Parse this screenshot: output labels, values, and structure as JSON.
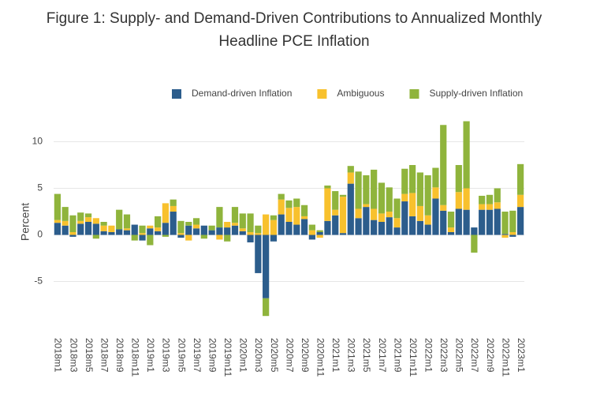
{
  "chart_data": {
    "type": "stacked_bar",
    "title": [
      "Figure 1: Supply- and Demand-Driven Contributions to Annualized Monthly",
      "Headline PCE Inflation"
    ],
    "y_label": "Percent",
    "categories": [
      "2018m1",
      null,
      "2018m3",
      null,
      "2018m5",
      null,
      "2018m7",
      null,
      "2018m9",
      null,
      "2018m11",
      null,
      "2019m1",
      null,
      "2019m3",
      null,
      "2019m5",
      null,
      "2019m7",
      null,
      "2019m9",
      null,
      "2019m11",
      null,
      "2020m1",
      null,
      "2020m3",
      null,
      "2020m5",
      null,
      "2020m7",
      null,
      "2020m9",
      null,
      "2020m11",
      null,
      "2021m1",
      null,
      "2021m3",
      null,
      "2021m5",
      null,
      "2021m7",
      null,
      "2021m9",
      null,
      "2021m11",
      null,
      "2022m1",
      null,
      "2022m3",
      null,
      "2022m5",
      null,
      "2022m7",
      null,
      "2022m9",
      null,
      "2022m11",
      null,
      "2023m1"
    ],
    "series": [
      {
        "name": "Demand-driven Inflation",
        "color": "#2c5d8c",
        "values": [
          1.3,
          1.0,
          -0.2,
          1.2,
          1.4,
          1.2,
          0.4,
          0.3,
          0.6,
          0.5,
          1.1,
          -0.6,
          0.7,
          0.4,
          1.3,
          2.5,
          -0.3,
          1.0,
          0.7,
          1.0,
          0.5,
          0.8,
          0.8,
          1.0,
          0.4,
          -0.8,
          -4.1,
          -6.8,
          -0.7,
          2.2,
          1.4,
          1.1,
          1.7,
          -0.5,
          0.3,
          1.5,
          2.1,
          0.2,
          5.5,
          1.8,
          3.0,
          1.6,
          1.4,
          1.9,
          0.8,
          3.6,
          2.0,
          1.5,
          1.1,
          3.9,
          2.6,
          0.3,
          2.8,
          2.7,
          0.8,
          2.7,
          2.7,
          2.8,
          0.1,
          -0.2,
          3.0
        ]
      },
      {
        "name": "Ambiguous",
        "color": "#f8c12d",
        "values": [
          0.3,
          0.5,
          0.3,
          0.3,
          0.5,
          0.6,
          0.6,
          0.7,
          0,
          0.2,
          0,
          0.2,
          0.3,
          0.4,
          2.1,
          0.6,
          0.2,
          -0.6,
          0.4,
          0,
          0,
          -0.5,
          0.6,
          0.3,
          0.3,
          0.3,
          0.2,
          2.2,
          1.6,
          1.6,
          1.5,
          1.9,
          0.3,
          0.5,
          -0.3,
          3.5,
          0.6,
          3.9,
          1.2,
          1.0,
          0.3,
          1.2,
          0.9,
          0.6,
          1.0,
          0.8,
          2.5,
          1.6,
          1.0,
          1.2,
          0.6,
          0.5,
          1.8,
          2.3,
          0,
          0.6,
          0.6,
          0.7,
          -0.3,
          0.3,
          1.3
        ]
      },
      {
        "name": "Supply-driven Inflation",
        "color": "#8fb43c",
        "values": [
          2.8,
          1.5,
          1.8,
          0.9,
          0.4,
          -0.4,
          0.4,
          0,
          2.1,
          1.5,
          -0.6,
          0.8,
          -1.1,
          1.2,
          -0.2,
          0.7,
          1.3,
          0.4,
          0.7,
          -0.4,
          0.5,
          2.2,
          -0.7,
          1.7,
          1.6,
          2.0,
          0.8,
          -1.9,
          0.5,
          0.6,
          0.8,
          0.9,
          1.2,
          0.6,
          0.2,
          0.3,
          2.0,
          0.2,
          0.7,
          4.0,
          3.1,
          4.2,
          3.3,
          2.6,
          2.1,
          2.7,
          3.0,
          3.6,
          4.3,
          2.1,
          8.6,
          1.7,
          2.9,
          7.2,
          -1.9,
          0.9,
          1.0,
          1.5,
          2.4,
          2.3,
          3.3
        ]
      }
    ],
    "ylim": [
      -9.7,
      12.5
    ],
    "yticks": [
      -5,
      0,
      5,
      10
    ],
    "grid": true
  }
}
